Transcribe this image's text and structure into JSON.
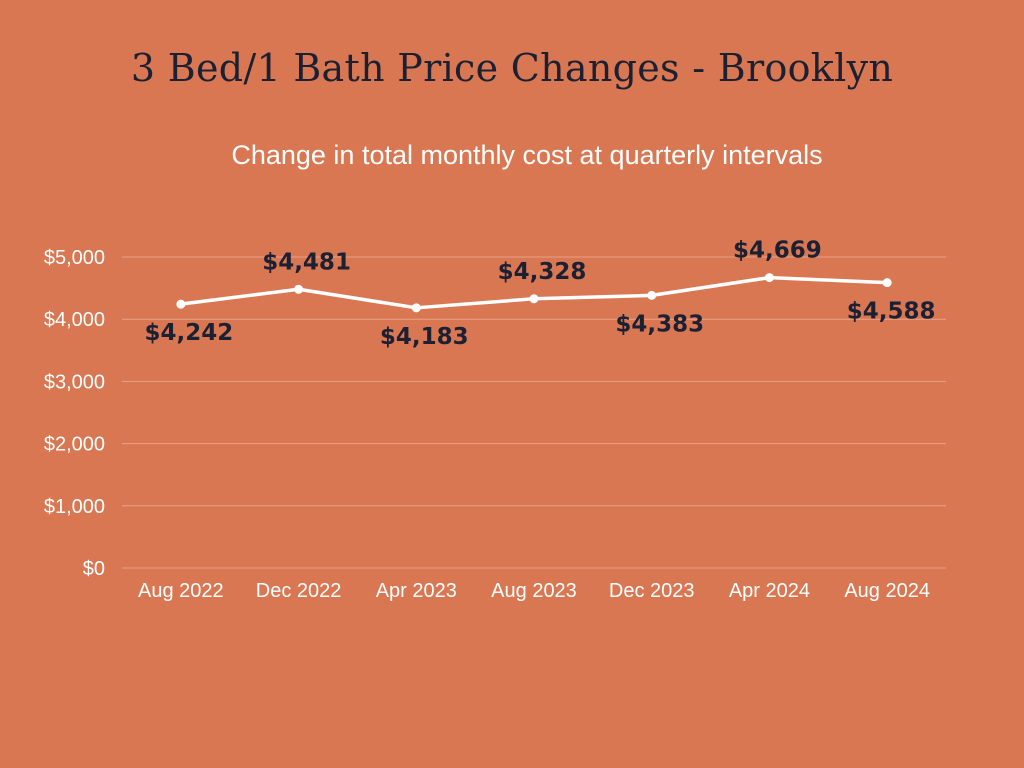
{
  "colors": {
    "background": "#d97753",
    "title": "#1c2033",
    "line": "#ffffff",
    "grid": "#e7a286",
    "data_label": "#1c2033"
  },
  "chart_data": {
    "type": "line",
    "title": "3 Bed/1 Bath Price Changes - Brooklyn",
    "subtitle": "Change in total monthly cost at quarterly intervals",
    "categories": [
      "Aug 2022",
      "Dec 2022",
      "Apr 2023",
      "Aug 2023",
      "Dec 2023",
      "Apr 2024",
      "Aug 2024"
    ],
    "series": [
      {
        "values": [
          4242,
          4481,
          4183,
          4328,
          4383,
          4669,
          4588
        ],
        "labels": [
          "$4,242",
          "$4,481",
          "$4,183",
          "$4,328",
          "$4,383",
          "$4,669",
          "$4,588"
        ],
        "label_positions": [
          "below",
          "above",
          "below",
          "above",
          "below",
          "above",
          "below"
        ]
      }
    ],
    "y_ticks": [
      0,
      1000,
      2000,
      3000,
      4000,
      5000
    ],
    "y_tick_labels": [
      "$0",
      "$1,000",
      "$2,000",
      "$3,000",
      "$4,000",
      "$5,000"
    ],
    "ylim": [
      0,
      5000
    ],
    "grid": true,
    "legend": "none",
    "markers": true
  }
}
